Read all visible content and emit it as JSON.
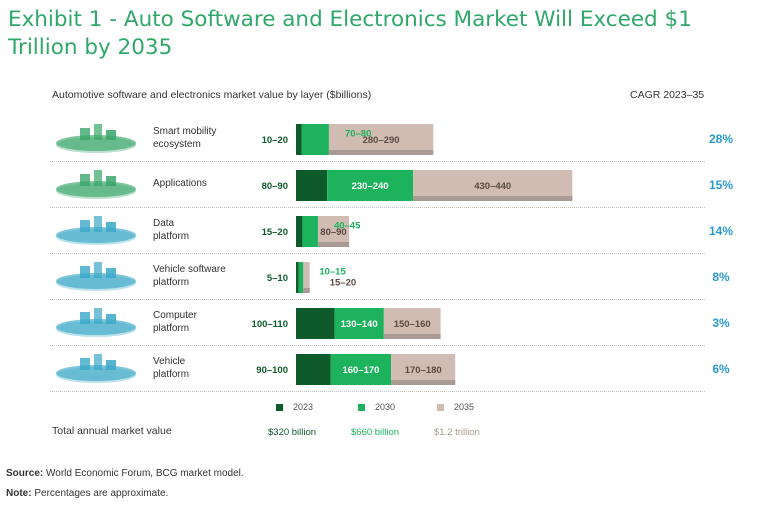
{
  "title": "Exhibit 1 - Auto Software and Electronics Market Will Exceed $1 Trillion by 2035",
  "chart_data": {
    "type": "bar",
    "orientation": "horizontal",
    "stacked": true,
    "subtitle": "Automotive software and electronics market value by layer ($billions)",
    "cagr_header": "CAGR 2023–35",
    "series": [
      {
        "name": "2023",
        "color": "#0f5a2a"
      },
      {
        "name": "2030",
        "color": "#1db35c"
      },
      {
        "name": "2035",
        "color": "#d0bcb2"
      }
    ],
    "categories": [
      {
        "label": "Smart mobility ecosystem",
        "label_lines": [
          "Smart mobility",
          "ecosystem"
        ],
        "values": [
          15,
          75,
          285
        ],
        "value_labels": [
          "10–20",
          "70–80",
          "280–290"
        ],
        "cagr": "28%"
      },
      {
        "label": "Applications",
        "label_lines": [
          "Applications"
        ],
        "values": [
          85,
          235,
          435
        ],
        "value_labels": [
          "80–90",
          "230–240",
          "430–440"
        ],
        "cagr": "15%"
      },
      {
        "label": "Data platform",
        "label_lines": [
          "Data",
          "platform"
        ],
        "values": [
          17.5,
          42.5,
          85
        ],
        "value_labels": [
          "15–20",
          "40–45",
          "80–90"
        ],
        "cagr": "14%"
      },
      {
        "label": "Vehicle software platform",
        "label_lines": [
          "Vehicle software",
          "platform"
        ],
        "values": [
          7.5,
          12.5,
          17.5
        ],
        "value_labels": [
          "5–10",
          "10–15",
          "15–20"
        ],
        "cagr": "8%"
      },
      {
        "label": "Computer platform",
        "label_lines": [
          "Computer",
          "platform"
        ],
        "values": [
          105,
          135,
          155
        ],
        "value_labels": [
          "100–110",
          "130–140",
          "150–160"
        ],
        "cagr": "3%"
      },
      {
        "label": "Vehicle platform",
        "label_lines": [
          "Vehicle",
          "platform"
        ],
        "values": [
          95,
          165,
          175
        ],
        "value_labels": [
          "90–100",
          "160–170",
          "170–180"
        ],
        "cagr": "6%"
      }
    ],
    "legend": [
      "2023",
      "2030",
      "2035"
    ],
    "legend_placement": "bottom",
    "total": {
      "label": "Total annual market value",
      "values": [
        "$320 billion",
        "$660 billion",
        "$1.2 trillion"
      ]
    },
    "x_max": 1000
  },
  "footnotes": {
    "source_label": "Source:",
    "source_text": " World Economic Forum, BCG market model.",
    "note_label": "Note:",
    "note_text": " Percentages are approximate."
  }
}
